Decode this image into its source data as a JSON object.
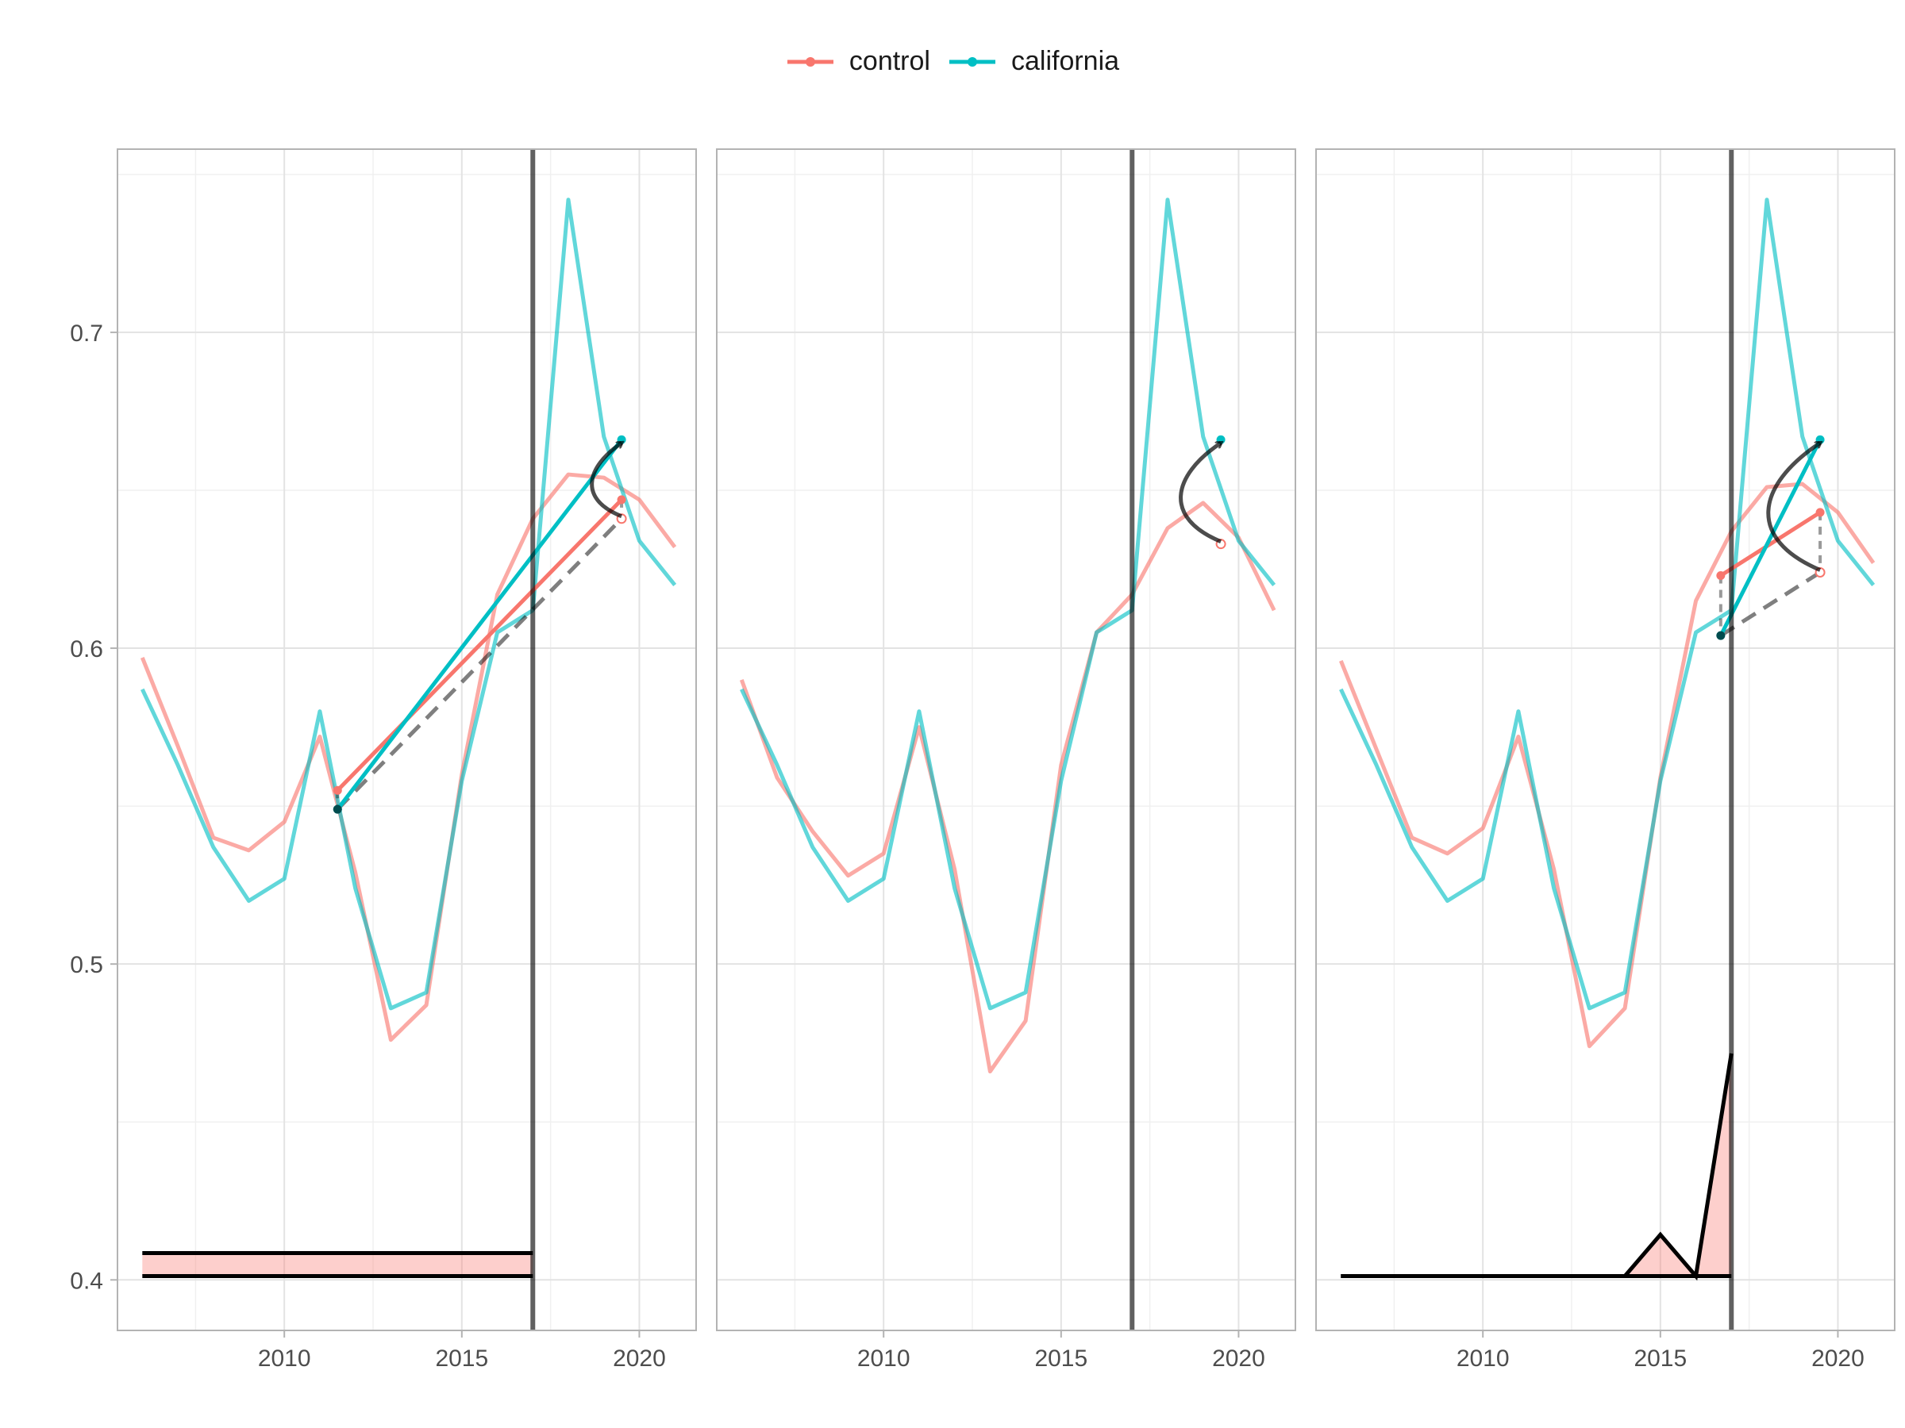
{
  "chart_data": {
    "type": "line",
    "legend": {
      "position": "top",
      "items": [
        {
          "name": "control",
          "color": "#F8766D"
        },
        {
          "name": "california",
          "color": "#00BFC4"
        }
      ]
    },
    "x_ticks": [
      2010,
      2015,
      2020
    ],
    "y_ticks": [
      0.4,
      0.5,
      0.6,
      0.7
    ],
    "y_tick_labels": [
      "0.4",
      "0.5",
      "0.6",
      "0.7"
    ],
    "xlim": [
      2005.3,
      2021.6
    ],
    "ylim": [
      0.384,
      0.758
    ],
    "treatment_year": 2017,
    "grid": true,
    "facets": [
      {
        "series": [
          {
            "name": "control",
            "x": [
              2006,
              2007,
              2008,
              2009,
              2010,
              2011,
              2012,
              2013,
              2014,
              2015,
              2016,
              2017,
              2018,
              2019,
              2020,
              2021
            ],
            "y": [
              0.597,
              0.569,
              0.54,
              0.536,
              0.545,
              0.572,
              0.529,
              0.476,
              0.487,
              0.56,
              0.617,
              0.641,
              0.655,
              0.654,
              0.647,
              0.632
            ]
          },
          {
            "name": "california",
            "x": [
              2006,
              2007,
              2008,
              2009,
              2010,
              2011,
              2012,
              2013,
              2014,
              2015,
              2016,
              2017,
              2018,
              2019,
              2020,
              2021
            ],
            "y": [
              0.587,
              0.563,
              0.537,
              0.52,
              0.527,
              0.58,
              0.524,
              0.486,
              0.491,
              0.558,
              0.605,
              0.612,
              0.742,
              0.667,
              0.634,
              0.62
            ]
          }
        ],
        "diff_segments": {
          "control": {
            "x": [
              2011.5,
              2019.5
            ],
            "y": [
              0.555,
              0.647
            ]
          },
          "california": {
            "x": [
              2011.5,
              2019.5
            ],
            "y": [
              0.549,
              0.666
            ]
          },
          "counterfactual": {
            "x": [
              2011.5,
              2019.5
            ],
            "y": [
              0.549,
              0.641
            ]
          },
          "effect_arrow": {
            "from": [
              2019.5,
              0.641
            ],
            "to": [
              2019.5,
              0.666
            ]
          }
        },
        "weights": {
          "type": "uniform",
          "x_from": 2006,
          "x_to": 2017,
          "y_bottom": 0.4012,
          "y_top": 0.4085
        }
      },
      {
        "series": [
          {
            "name": "control",
            "x": [
              2006,
              2007,
              2008,
              2009,
              2010,
              2011,
              2012,
              2013,
              2014,
              2015,
              2016,
              2017,
              2018,
              2019,
              2020,
              2021
            ],
            "y": [
              0.59,
              0.559,
              0.542,
              0.528,
              0.535,
              0.575,
              0.53,
              0.466,
              0.482,
              0.563,
              0.605,
              0.617,
              0.638,
              0.646,
              0.635,
              0.612
            ]
          },
          {
            "name": "california",
            "x": [
              2006,
              2007,
              2008,
              2009,
              2010,
              2011,
              2012,
              2013,
              2014,
              2015,
              2016,
              2017,
              2018,
              2019,
              2020,
              2021
            ],
            "y": [
              0.587,
              0.563,
              0.537,
              0.52,
              0.527,
              0.58,
              0.524,
              0.486,
              0.491,
              0.558,
              0.605,
              0.612,
              0.742,
              0.667,
              0.634,
              0.62
            ]
          }
        ],
        "effect_arrow": {
          "from": [
            2019.5,
            0.633
          ],
          "to": [
            2019.5,
            0.666
          ]
        }
      },
      {
        "series": [
          {
            "name": "control",
            "x": [
              2006,
              2007,
              2008,
              2009,
              2010,
              2011,
              2012,
              2013,
              2014,
              2015,
              2016,
              2017,
              2018,
              2019,
              2020,
              2021
            ],
            "y": [
              0.596,
              0.568,
              0.54,
              0.535,
              0.543,
              0.572,
              0.53,
              0.474,
              0.486,
              0.559,
              0.615,
              0.637,
              0.651,
              0.652,
              0.643,
              0.627
            ]
          },
          {
            "name": "california",
            "x": [
              2006,
              2007,
              2008,
              2009,
              2010,
              2011,
              2012,
              2013,
              2014,
              2015,
              2016,
              2017,
              2018,
              2019,
              2020,
              2021
            ],
            "y": [
              0.587,
              0.563,
              0.537,
              0.52,
              0.527,
              0.58,
              0.524,
              0.486,
              0.491,
              0.558,
              0.605,
              0.612,
              0.742,
              0.667,
              0.634,
              0.62
            ]
          }
        ],
        "diff_segments": {
          "control": {
            "x": [
              2016.7,
              2019.5
            ],
            "y": [
              0.623,
              0.643
            ]
          },
          "california": {
            "x": [
              2016.7,
              2019.5
            ],
            "y": [
              0.604,
              0.666
            ]
          },
          "counterfactual": {
            "x": [
              2016.7,
              2019.5
            ],
            "y": [
              0.604,
              0.624
            ]
          },
          "effect_arrow": {
            "from": [
              2019.5,
              0.624
            ],
            "to": [
              2019.5,
              0.666
            ]
          }
        },
        "weights": {
          "type": "curve",
          "x": [
            2006,
            2014,
            2015,
            2016,
            2017
          ],
          "y": [
            0.4012,
            0.4012,
            0.4143,
            0.4012,
            0.4717
          ],
          "baseline": 0.4012
        }
      }
    ]
  }
}
